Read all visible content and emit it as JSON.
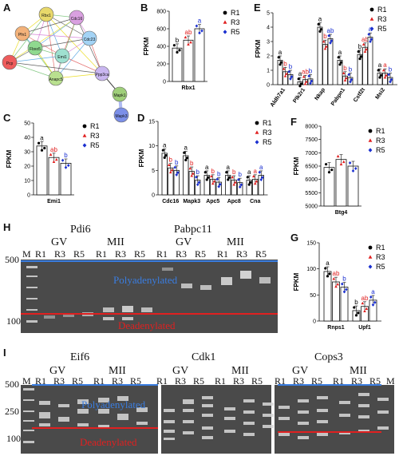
{
  "panels": {
    "A": {
      "letter": "A",
      "nodes": [
        {
          "label": "Rbx1",
          "color": "#e8d86a"
        },
        {
          "label": "Cdc16",
          "color": "#d9a0e0"
        },
        {
          "label": "Pfn1",
          "color": "#f3b27a"
        },
        {
          "label": "Cdc23",
          "color": "#a3d3f5"
        },
        {
          "label": "Fbxo5",
          "color": "#8fd98f"
        },
        {
          "label": "Emi1",
          "color": "#9fe0d0"
        },
        {
          "label": "Anapc5",
          "color": "#b9e08f"
        },
        {
          "label": "Pcp",
          "color": "#ee5c5c"
        },
        {
          "label": "Ppp3ca",
          "color": "#c9b6f0"
        },
        {
          "label": "Mapk1",
          "color": "#9fcf7a"
        },
        {
          "label": "Mapk3",
          "color": "#7b8fe8"
        }
      ]
    },
    "B": {
      "letter": "B"
    },
    "C": {
      "letter": "C"
    },
    "D": {
      "letter": "D"
    },
    "E": {
      "letter": "E"
    },
    "F": {
      "letter": "F"
    },
    "G": {
      "letter": "G"
    },
    "H": {
      "letter": "H"
    },
    "I": {
      "letter": "I"
    }
  },
  "legend": [
    "R1",
    "R3",
    "R5"
  ],
  "colors": {
    "R1": "#000000",
    "R3": "#e02020",
    "R5": "#1a2fd0",
    "poly": "#3a7de0",
    "dead": "#e02020"
  },
  "chart_data": [
    {
      "id": "B",
      "type": "bar",
      "ylabel": "FPKM",
      "ylim": [
        0,
        800
      ],
      "yticks": [
        0,
        200,
        400,
        600,
        800
      ],
      "categories": [
        "Rbx1"
      ],
      "series": [
        {
          "name": "R1",
          "values": [
            380
          ]
        },
        {
          "name": "R3",
          "values": [
            470
          ]
        },
        {
          "name": "R5",
          "values": [
            600
          ]
        }
      ],
      "letters": [
        [
          "b"
        ],
        [
          "ab"
        ],
        [
          "a"
        ]
      ]
    },
    {
      "id": "C",
      "type": "bar",
      "ylabel": "FPKM",
      "ylim": [
        0,
        50
      ],
      "yticks": [
        0,
        10,
        20,
        30,
        40,
        50
      ],
      "categories": [
        "Emi1"
      ],
      "series": [
        {
          "name": "R1",
          "values": [
            34
          ]
        },
        {
          "name": "R3",
          "values": [
            26
          ]
        },
        {
          "name": "R5",
          "values": [
            22
          ]
        }
      ],
      "letters": [
        [
          "a"
        ],
        [
          "ab"
        ],
        [
          "b"
        ]
      ]
    },
    {
      "id": "D",
      "type": "bar",
      "ylabel": "FPKM",
      "ylim": [
        0,
        15
      ],
      "yticks": [
        0,
        5,
        10,
        15
      ],
      "categories": [
        "Cdc16",
        "Mapk3",
        "Apc5",
        "Apc8",
        "Cna"
      ],
      "series": [
        {
          "name": "R1",
          "values": [
            8.5,
            8.0,
            4.0,
            4.0,
            3.0
          ]
        },
        {
          "name": "R3",
          "values": [
            5.5,
            4.8,
            3.2,
            3.0,
            3.2
          ]
        },
        {
          "name": "R5",
          "values": [
            5.0,
            3.0,
            2.6,
            2.5,
            4.0
          ]
        }
      ],
      "letters": [
        [
          "a",
          "a",
          "a",
          "a",
          "a"
        ],
        [
          "b",
          "b",
          "b",
          "b",
          "a"
        ],
        [
          "b",
          "b",
          "b",
          "b",
          "a"
        ]
      ]
    },
    {
      "id": "E",
      "type": "bar",
      "ylabel": "FPKM",
      "ylim": [
        0,
        5
      ],
      "yticks": [
        0,
        1,
        2,
        3,
        4,
        5
      ],
      "categories": [
        "Aldh7a1",
        "Plk2r1",
        "Nkap",
        "Pabpn1",
        "Cstf2t",
        "Msi2"
      ],
      "series": [
        {
          "name": "R1",
          "values": [
            1.7,
            0.2,
            4.0,
            1.7,
            2.1,
            0.8
          ]
        },
        {
          "name": "R3",
          "values": [
            0.9,
            0.35,
            2.8,
            0.6,
            2.6,
            0.8
          ]
        },
        {
          "name": "R5",
          "values": [
            0.7,
            0.4,
            3.2,
            0.5,
            3.3,
            0.5
          ]
        }
      ],
      "letters": [
        [
          "a",
          "a",
          "a",
          "a",
          "b",
          "a"
        ],
        [
          "b",
          "ab",
          "b",
          "b",
          "ab",
          "a"
        ],
        [
          "b",
          "b",
          "ab",
          "b",
          "a",
          "b"
        ]
      ]
    },
    {
      "id": "F",
      "type": "bar",
      "ylabel": "FPKM",
      "ylim": [
        5000,
        8000
      ],
      "yticks": [
        5000,
        5500,
        6000,
        6500,
        7000,
        7500,
        8000
      ],
      "categories": [
        "Btg4"
      ],
      "series": [
        {
          "name": "R1",
          "values": [
            6450
          ]
        },
        {
          "name": "R3",
          "values": [
            6750
          ]
        },
        {
          "name": "R5",
          "values": [
            6500
          ]
        }
      ],
      "letters": [
        [
          ""
        ],
        [
          ""
        ],
        [
          ""
        ]
      ]
    },
    {
      "id": "G",
      "type": "bar",
      "ylabel": "FPKM",
      "ylim": [
        0,
        150
      ],
      "yticks": [
        0,
        50,
        100,
        150
      ],
      "categories": [
        "Rnps1",
        "Upf1"
      ],
      "series": [
        {
          "name": "R1",
          "values": [
            95,
            20
          ]
        },
        {
          "name": "R3",
          "values": [
            75,
            28
          ]
        },
        {
          "name": "R5",
          "values": [
            65,
            40
          ]
        }
      ],
      "letters": [
        [
          "a",
          "b"
        ],
        [
          "ab",
          "ab"
        ],
        [
          "b",
          "a"
        ]
      ]
    }
  ],
  "gelH": {
    "letter": "H",
    "marker": "M",
    "ladder": [
      "500",
      "100"
    ],
    "genes": [
      {
        "name": "Pdi6",
        "groups": [
          "GV",
          "MII"
        ]
      },
      {
        "name": "Pabpc11",
        "groups": [
          "GV",
          "MII"
        ]
      }
    ],
    "lanes": [
      "R1",
      "R3",
      "R5",
      "R1",
      "R3",
      "R5"
    ],
    "poly": "Polyadenylated",
    "dead": "Deadenylated"
  },
  "gelI": {
    "letter": "I",
    "marker": "M",
    "ladder": [
      "500",
      "250",
      "100"
    ],
    "genes": [
      {
        "name": "Eif6",
        "groups": [
          "GV",
          "MII"
        ]
      },
      {
        "name": "Cdk1",
        "groups": [
          "GV",
          "MII"
        ]
      },
      {
        "name": "Cops3",
        "groups": [
          "GV",
          "MII"
        ]
      }
    ],
    "lanes": [
      "R1",
      "R3",
      "R5",
      "R1",
      "R3",
      "R5"
    ],
    "poly": "Polyadenylated",
    "dead": "Deadenylated"
  }
}
